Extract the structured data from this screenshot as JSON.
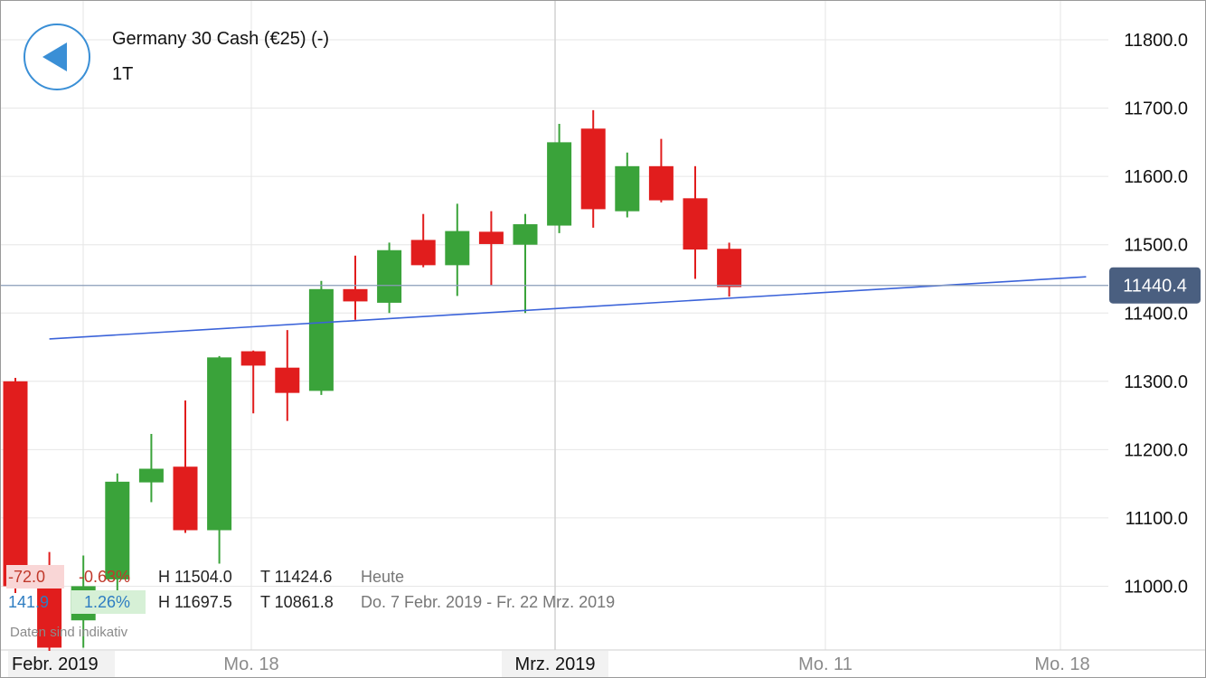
{
  "header": {
    "title": "Germany 30 Cash (€25) (-)",
    "timeframe": "1T"
  },
  "colors": {
    "up": "#3aa33a",
    "down": "#e11d1d",
    "trendline": "#3b63d9",
    "price_line": "#8a9cb8",
    "price_badge": "#4a5f80",
    "grid": "#e6e6e6",
    "accent": "#3a8fd6"
  },
  "stats": {
    "today": {
      "change": "-72.0",
      "percent": "-0.63%",
      "high": "H 11504.0",
      "low": "T 11424.6",
      "label": "Heute"
    },
    "range": {
      "change": "141.9",
      "percent": "1.26%",
      "high": "H 11697.5",
      "low": "T 10861.8",
      "label": "Do. 7 Febr. 2019 - Fr. 22 Mrz. 2019"
    }
  },
  "disclaimer": "Daten sind indikativ",
  "chart_data": {
    "type": "candlestick",
    "ylim": [
      10900,
      11870
    ],
    "y_ticks": [
      "11000.0",
      "11100.0",
      "11200.0",
      "11300.0",
      "11400.0",
      "11500.0",
      "11600.0",
      "11700.0",
      "11800.0"
    ],
    "x_labels": [
      "Febr. 2019",
      "Mo. 18",
      "Mrz. 2019",
      "Mo. 11",
      "Mo. 18"
    ],
    "current_price": "11440.4",
    "trendline": [
      [
        1,
        11362
      ],
      [
        31.5,
        11453
      ]
    ],
    "candles": [
      {
        "open": 11300,
        "high": 11305,
        "low": 10990,
        "close": 11000
      },
      {
        "open": 11000,
        "high": 11050,
        "low": 10880,
        "close": 10910
      },
      {
        "open": 10950,
        "high": 11045,
        "low": 10910,
        "close": 11000
      },
      {
        "open": 11010,
        "high": 11165,
        "low": 10990,
        "close": 11153
      },
      {
        "open": 11152,
        "high": 11223,
        "low": 11123,
        "close": 11172
      },
      {
        "open": 11175,
        "high": 11272,
        "low": 11078,
        "close": 11082
      },
      {
        "open": 11082,
        "high": 11337,
        "low": 11033,
        "close": 11335
      },
      {
        "open": 11344,
        "high": 11345,
        "low": 11253,
        "close": 11323
      },
      {
        "open": 11320,
        "high": 11375,
        "low": 11242,
        "close": 11283
      },
      {
        "open": 11286,
        "high": 11447,
        "low": 11280,
        "close": 11435
      },
      {
        "open": 11435,
        "high": 11484,
        "low": 11390,
        "close": 11417
      },
      {
        "open": 11415,
        "high": 11503,
        "low": 11400,
        "close": 11492
      },
      {
        "open": 11507,
        "high": 11545,
        "low": 11467,
        "close": 11470
      },
      {
        "open": 11470,
        "high": 11560,
        "low": 11425,
        "close": 11520
      },
      {
        "open": 11519,
        "high": 11549,
        "low": 11440,
        "close": 11501
      },
      {
        "open": 11500,
        "high": 11545,
        "low": 11400,
        "close": 11530
      },
      {
        "open": 11528,
        "high": 11677,
        "low": 11517,
        "close": 11650
      },
      {
        "open": 11670,
        "high": 11697,
        "low": 11525,
        "close": 11552
      },
      {
        "open": 11549,
        "high": 11635,
        "low": 11540,
        "close": 11615
      },
      {
        "open": 11615,
        "high": 11655,
        "low": 11562,
        "close": 11565
      },
      {
        "open": 11568,
        "high": 11615,
        "low": 11450,
        "close": 11493
      },
      {
        "open": 11494,
        "high": 11503,
        "low": 11424,
        "close": 11438
      }
    ]
  }
}
